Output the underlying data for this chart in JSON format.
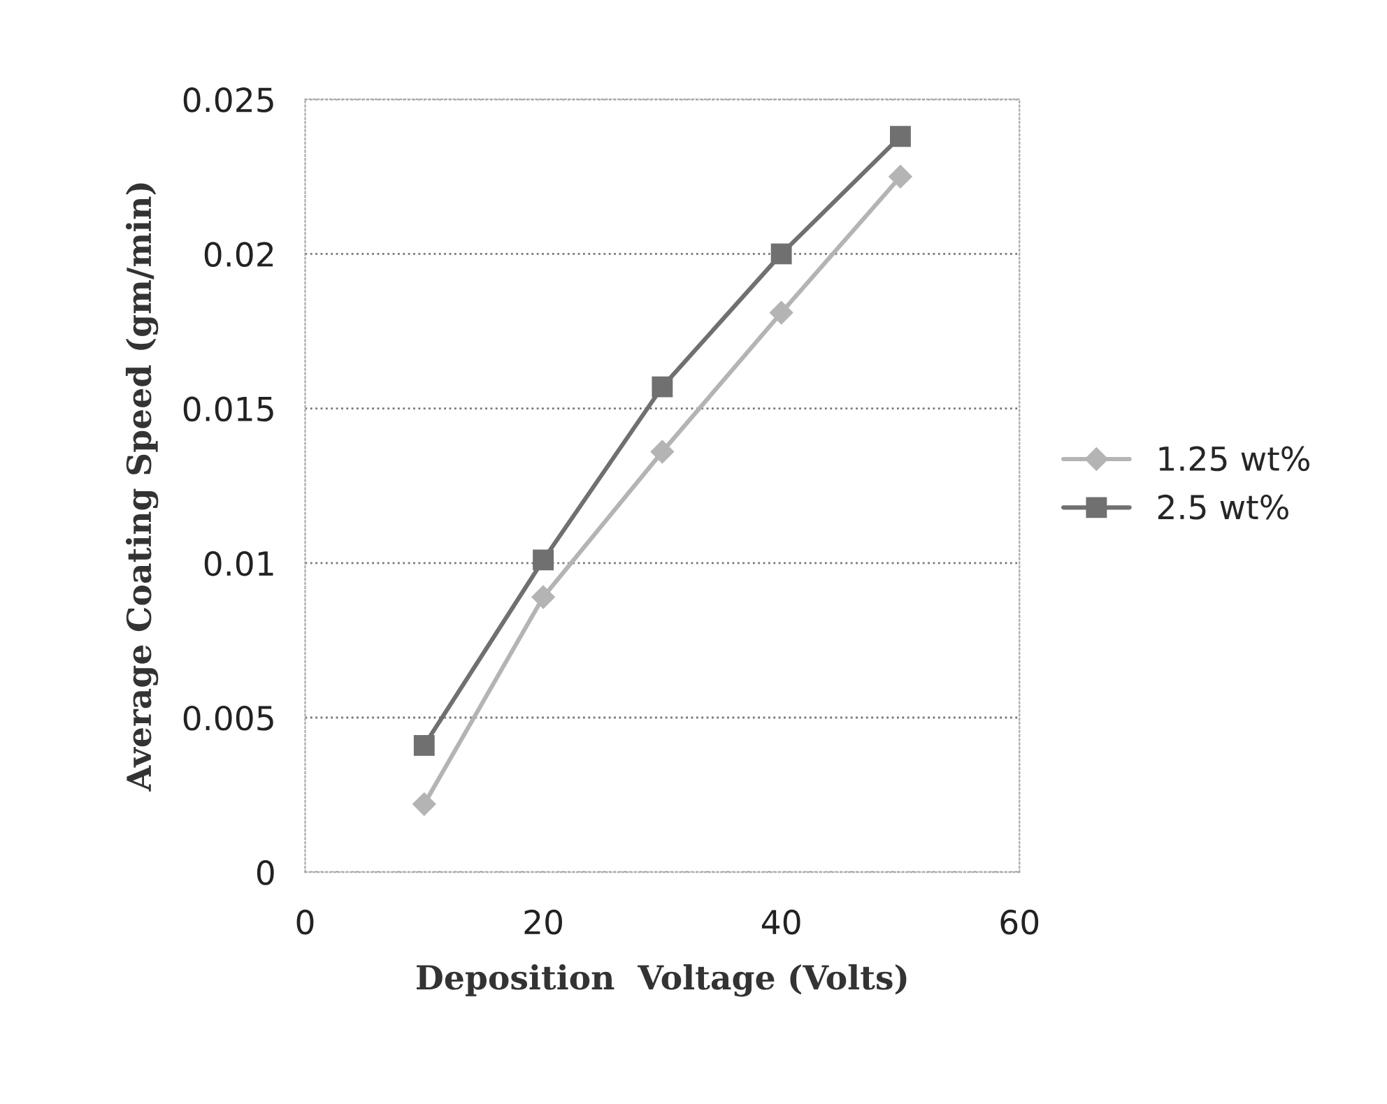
{
  "chart_data": {
    "type": "line",
    "xlabel": "Deposition  Voltage (Volts)",
    "ylabel": "Average Coating Speed (gm/min)",
    "x": [
      10,
      20,
      30,
      40,
      50
    ],
    "series": [
      {
        "name": "1.25 wt%",
        "color": "#b4b4b4",
        "marker": "diamond",
        "values": [
          0.0022,
          0.0089,
          0.0136,
          0.0181,
          0.0225
        ]
      },
      {
        "name": "2.5 wt%",
        "color": "#707070",
        "marker": "square",
        "values": [
          0.0041,
          0.0101,
          0.0157,
          0.02,
          0.0238
        ]
      }
    ],
    "xlim": [
      0,
      60
    ],
    "xticks": [
      0,
      20,
      40,
      60
    ],
    "ylim": [
      0,
      0.025
    ],
    "yticks": [
      0,
      0.005,
      0.01,
      0.015,
      0.02,
      0.025
    ],
    "grid": "y",
    "legend": "right",
    "line_style": "solid"
  }
}
